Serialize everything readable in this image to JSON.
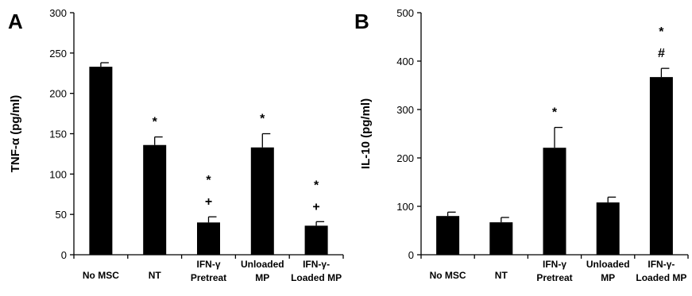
{
  "chart_data": [
    {
      "panel": "A",
      "type": "bar",
      "ylabel": "TNF-α (pg/ml)",
      "ylim": [
        0,
        300
      ],
      "yticks": [
        0,
        50,
        100,
        150,
        200,
        250,
        300
      ],
      "categories": [
        [
          "No MSC"
        ],
        [
          "NT"
        ],
        [
          "IFN-γ",
          "Pretreat"
        ],
        [
          "Unloaded",
          "MP"
        ],
        [
          "IFN-γ-",
          "Loaded MP"
        ]
      ],
      "values": [
        233,
        136,
        40,
        133,
        36
      ],
      "errors": [
        5,
        10,
        7,
        17,
        5
      ],
      "annotations": [
        [],
        [
          "*"
        ],
        [
          "*",
          "+"
        ],
        [
          "*"
        ],
        [
          "*",
          "+"
        ]
      ],
      "grid": false,
      "legend": "none"
    },
    {
      "panel": "B",
      "type": "bar",
      "ylabel": "IL-10 (pg/ml)",
      "ylim": [
        0,
        500
      ],
      "yticks": [
        0,
        100,
        200,
        300,
        400,
        500
      ],
      "categories": [
        [
          "No MSC"
        ],
        [
          "NT"
        ],
        [
          "IFN-γ",
          "Pretreat"
        ],
        [
          "Unloaded",
          "MP"
        ],
        [
          "IFN-γ-",
          "Loaded MP"
        ]
      ],
      "values": [
        80,
        67,
        221,
        108,
        367
      ],
      "errors": [
        8,
        10,
        42,
        11,
        18
      ],
      "annotations": [
        [],
        [],
        [
          "*"
        ],
        [],
        [
          "*",
          "#"
        ]
      ],
      "grid": false,
      "legend": "none"
    }
  ]
}
